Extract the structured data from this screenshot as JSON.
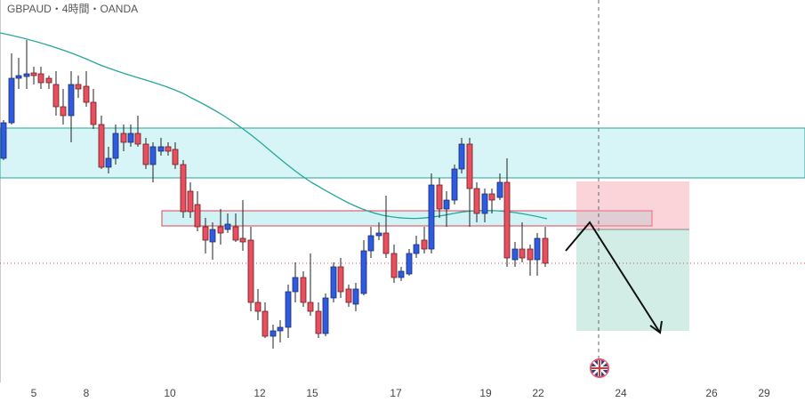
{
  "header": {
    "title": "GBPAUD・4時間・OANDA"
  },
  "x_axis": {
    "labels": [
      "5",
      "8",
      "10",
      "12",
      "15",
      "17",
      "19",
      "22",
      "24",
      "26",
      "29"
    ]
  }
}
